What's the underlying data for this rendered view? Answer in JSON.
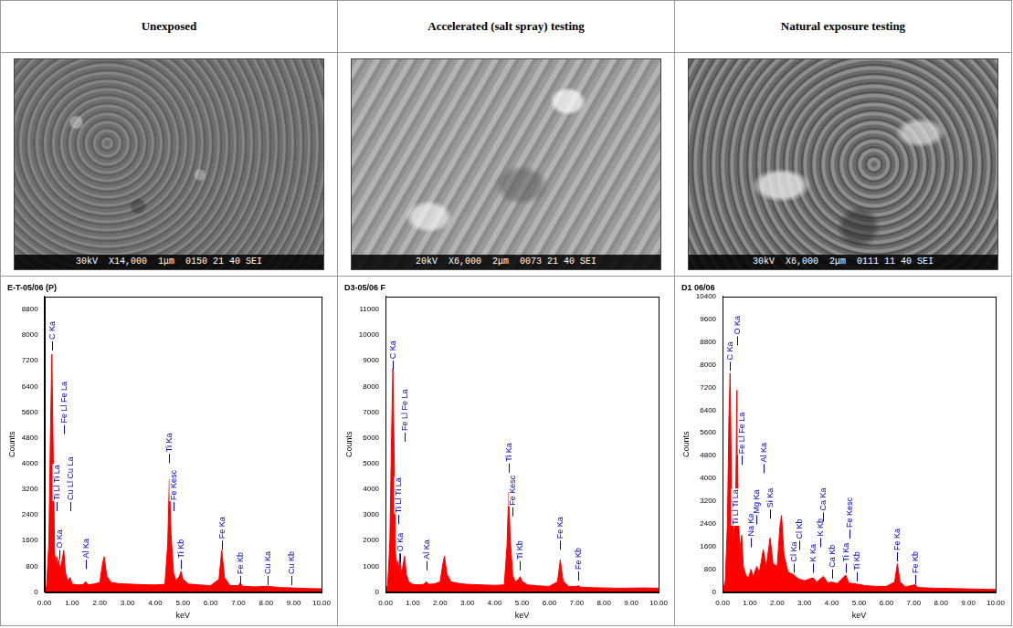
{
  "headers": [
    "Unexposed",
    "Accelerated (salt spray) testing",
    "Natural exposure testing"
  ],
  "sem_images": [
    {
      "caption": "30kV  X14,000  1μm  0150 21 40 SEI"
    },
    {
      "caption": "20kV  X6,000  2μm  0073 21 40 SEI"
    },
    {
      "caption": "30kV  X6,000  2μm  0111 11 40 SEI"
    }
  ],
  "chart_data": [
    {
      "type": "line",
      "title": "E-T-05/06 (P)",
      "x_label": "keV",
      "y_label": "Counts",
      "color": "#ff0000",
      "grid": false,
      "x": [
        0.0,
        0.08,
        0.16,
        0.22,
        0.27,
        0.32,
        0.37,
        0.42,
        0.45,
        0.49,
        0.52,
        0.56,
        0.62,
        0.7,
        0.76,
        0.85,
        0.93,
        1.0,
        1.2,
        1.4,
        1.49,
        1.58,
        1.8,
        2.0,
        2.1,
        2.16,
        2.25,
        2.4,
        2.7,
        3.0,
        3.5,
        4.0,
        4.35,
        4.45,
        4.51,
        4.57,
        4.66,
        4.75,
        4.88,
        4.93,
        5.0,
        5.2,
        5.6,
        6.0,
        6.3,
        6.4,
        6.5,
        6.7,
        7.0,
        7.06,
        7.15,
        7.6,
        8.04,
        8.5,
        8.9,
        9.5,
        10.0
      ],
      "values": [
        0,
        200,
        1500,
        5000,
        7400,
        4200,
        1200,
        900,
        1100,
        800,
        1000,
        700,
        900,
        1300,
        600,
        350,
        450,
        250,
        220,
        230,
        320,
        230,
        250,
        300,
        900,
        1100,
        500,
        300,
        260,
        250,
        230,
        220,
        240,
        1500,
        3500,
        1800,
        600,
        350,
        500,
        650,
        400,
        250,
        220,
        200,
        400,
        1300,
        450,
        200,
        200,
        280,
        180,
        160,
        180,
        140,
        130,
        110,
        100
      ],
      "xlim": [
        0,
        10
      ],
      "xticks": [
        {
          "value": 0,
          "label": "0.00"
        },
        {
          "value": 1,
          "label": "1.00"
        },
        {
          "value": 2,
          "label": "2.00"
        },
        {
          "value": 3,
          "label": "3.00"
        },
        {
          "value": 4,
          "label": "4.00"
        },
        {
          "value": 5,
          "label": "5.00"
        },
        {
          "value": 6,
          "label": "6.00"
        },
        {
          "value": 7,
          "label": "7.00"
        },
        {
          "value": 8,
          "label": "8.00"
        },
        {
          "value": 9,
          "label": "9.00"
        },
        {
          "value": 10,
          "label": "10.00"
        }
      ],
      "ylim": [
        0,
        9200
      ],
      "yticks": [
        0,
        800,
        1600,
        2400,
        3200,
        4000,
        4800,
        5600,
        6400,
        7200,
        8000,
        8800
      ],
      "annotations": [
        {
          "label": "C Ka",
          "x": 0.277,
          "y": 7800
        },
        {
          "label": "Ti Ll Ti La",
          "x": 0.452,
          "y": 2800
        },
        {
          "label": "O Ka",
          "x": 0.525,
          "y": 1300
        },
        {
          "label": "Fe Ll Fe La",
          "x": 0.705,
          "y": 5200
        },
        {
          "label": "Cu Ll Cu La",
          "x": 0.93,
          "y": 2800
        },
        {
          "label": "Al Ka",
          "x": 1.487,
          "y": 1000
        },
        {
          "label": "Ti Ka",
          "x": 4.51,
          "y": 4300
        },
        {
          "label": "Fe Kesc",
          "x": 4.66,
          "y": 2800
        },
        {
          "label": "Ti Kb",
          "x": 4.93,
          "y": 1000
        },
        {
          "label": "Fe Ka",
          "x": 6.4,
          "y": 1600
        },
        {
          "label": "Fe Kb",
          "x": 7.06,
          "y": 500
        },
        {
          "label": "Cu Ka",
          "x": 8.04,
          "y": 500
        },
        {
          "label": "Cu Kb",
          "x": 8.9,
          "y": 500
        }
      ]
    },
    {
      "type": "line",
      "title": "D3-05/06 F",
      "x_label": "keV",
      "y_label": "Counts",
      "color": "#ff0000",
      "grid": false,
      "x": [
        0.0,
        0.08,
        0.16,
        0.22,
        0.27,
        0.32,
        0.37,
        0.42,
        0.45,
        0.49,
        0.52,
        0.56,
        0.62,
        0.7,
        0.76,
        0.85,
        1.0,
        1.2,
        1.4,
        1.49,
        1.58,
        1.8,
        2.0,
        2.1,
        2.16,
        2.25,
        2.4,
        2.7,
        3.0,
        3.5,
        4.0,
        4.35,
        4.45,
        4.51,
        4.57,
        4.66,
        4.75,
        4.88,
        4.93,
        5.0,
        5.2,
        5.6,
        6.0,
        6.3,
        6.4,
        6.5,
        6.7,
        7.0,
        7.06,
        7.15,
        7.6,
        8.5,
        9.5,
        10.0
      ],
      "values": [
        0,
        300,
        2000,
        6000,
        8700,
        5000,
        1500,
        1000,
        1200,
        900,
        1500,
        800,
        900,
        1400,
        700,
        400,
        300,
        280,
        300,
        400,
        300,
        320,
        400,
        1100,
        1400,
        700,
        400,
        330,
        300,
        280,
        260,
        280,
        1800,
        3900,
        2000,
        650,
        400,
        500,
        600,
        420,
        280,
        240,
        220,
        400,
        1250,
        450,
        220,
        210,
        250,
        190,
        170,
        150,
        160,
        150
      ],
      "xlim": [
        0,
        10
      ],
      "xticks": [
        {
          "value": 0,
          "label": "0.00"
        },
        {
          "value": 1,
          "label": "1.00"
        },
        {
          "value": 2,
          "label": "2.00"
        },
        {
          "value": 3,
          "label": "3.00"
        },
        {
          "value": 4,
          "label": "4.00"
        },
        {
          "value": 5,
          "label": "5.00"
        },
        {
          "value": 6,
          "label": "6.00"
        },
        {
          "value": 7,
          "label": "7.00"
        },
        {
          "value": 8,
          "label": "8.00"
        },
        {
          "value": 9,
          "label": "9.00"
        },
        {
          "value": 10,
          "label": "10.00"
        }
      ],
      "ylim": [
        0,
        11500
      ],
      "yticks": [
        0,
        1000,
        2000,
        3000,
        4000,
        5000,
        6000,
        7000,
        8000,
        9000,
        10000,
        11000
      ],
      "annotations": [
        {
          "label": "C Ka",
          "x": 0.277,
          "y": 9000
        },
        {
          "label": "Ti Ll Ti La",
          "x": 0.452,
          "y": 3000
        },
        {
          "label": "O Ka",
          "x": 0.525,
          "y": 1500
        },
        {
          "label": "Fe Ll Fe La",
          "x": 0.705,
          "y": 6200
        },
        {
          "label": "Al Ka",
          "x": 1.487,
          "y": 1200
        },
        {
          "label": "Ti Ka",
          "x": 4.51,
          "y": 5000
        },
        {
          "label": "Fe Kesc",
          "x": 4.66,
          "y": 3300
        },
        {
          "label": "Ti Kb",
          "x": 4.93,
          "y": 1200
        },
        {
          "label": "Fe Ka",
          "x": 6.4,
          "y": 2000
        },
        {
          "label": "Fe Kb",
          "x": 7.06,
          "y": 800
        }
      ]
    },
    {
      "type": "line",
      "title": "D1 06/06",
      "x_label": "keV",
      "y_label": "Counts",
      "color": "#ff0000",
      "grid": false,
      "x": [
        0.0,
        0.1,
        0.18,
        0.23,
        0.277,
        0.33,
        0.4,
        0.45,
        0.49,
        0.525,
        0.57,
        0.63,
        0.7,
        0.76,
        0.85,
        0.95,
        1.04,
        1.12,
        1.25,
        1.35,
        1.49,
        1.6,
        1.74,
        1.85,
        2.0,
        2.1,
        2.16,
        2.25,
        2.4,
        2.62,
        2.72,
        2.82,
        3.0,
        3.31,
        3.45,
        3.69,
        3.85,
        4.01,
        4.2,
        4.51,
        4.62,
        4.93,
        5.2,
        5.6,
        6.0,
        6.3,
        6.4,
        6.5,
        6.7,
        7.06,
        7.15,
        7.6,
        8.5,
        9.5,
        10.0
      ],
      "values": [
        0,
        400,
        2500,
        6000,
        7700,
        3500,
        2000,
        2400,
        4000,
        7100,
        3000,
        1500,
        2000,
        900,
        600,
        500,
        800,
        550,
        900,
        700,
        1500,
        900,
        1900,
        1000,
        900,
        2300,
        2700,
        1300,
        700,
        600,
        500,
        450,
        400,
        500,
        350,
        550,
        330,
        350,
        300,
        600,
        320,
        280,
        230,
        200,
        200,
        350,
        1000,
        350,
        180,
        260,
        160,
        140,
        120,
        100,
        90
      ],
      "xlim": [
        0,
        10
      ],
      "xticks": [
        {
          "value": 0,
          "label": "0.00"
        },
        {
          "value": 1,
          "label": "1.00"
        },
        {
          "value": 2,
          "label": "2.00"
        },
        {
          "value": 3,
          "label": "3.00"
        },
        {
          "value": 4,
          "label": "4.00"
        },
        {
          "value": 5,
          "label": "5.00"
        },
        {
          "value": 6,
          "label": "6.00"
        },
        {
          "value": 7,
          "label": "7.00"
        },
        {
          "value": 8,
          "label": "8.00"
        },
        {
          "value": 9,
          "label": "9.00"
        },
        {
          "value": 10,
          "label": "10.00"
        }
      ],
      "ylim": [
        0,
        10400
      ],
      "yticks": [
        0,
        800,
        1600,
        2400,
        3200,
        4000,
        4800,
        5600,
        6400,
        7200,
        8000,
        8800,
        9600,
        10400
      ],
      "annotations": [
        {
          "label": "C Ka",
          "x": 0.277,
          "y": 8100
        },
        {
          "label": "O Ka",
          "x": 0.525,
          "y": 9000
        },
        {
          "label": "Ti Ll Ti La",
          "x": 0.452,
          "y": 2300
        },
        {
          "label": "Fe Ll Fe La",
          "x": 0.705,
          "y": 4800
        },
        {
          "label": "Na Ka",
          "x": 1.04,
          "y": 1900
        },
        {
          "label": "Mg Ka",
          "x": 1.25,
          "y": 2700
        },
        {
          "label": "Al Ka",
          "x": 1.49,
          "y": 4500
        },
        {
          "label": "Si Ka",
          "x": 1.74,
          "y": 2900
        },
        {
          "label": "Cl Ka",
          "x": 2.62,
          "y": 1000
        },
        {
          "label": "Cl Kb",
          "x": 2.82,
          "y": 1800
        },
        {
          "label": "K Ka",
          "x": 3.31,
          "y": 1000
        },
        {
          "label": "K Kb",
          "x": 3.59,
          "y": 1900
        },
        {
          "label": "Ca Ka",
          "x": 3.69,
          "y": 2800
        },
        {
          "label": "Ca Kb",
          "x": 4.01,
          "y": 800
        },
        {
          "label": "Ti Ka",
          "x": 4.51,
          "y": 1000
        },
        {
          "label": "Fe Kesc",
          "x": 4.66,
          "y": 2200
        },
        {
          "label": "Ti Kb",
          "x": 4.93,
          "y": 700
        },
        {
          "label": "Fe Ka",
          "x": 6.4,
          "y": 1400
        },
        {
          "label": "Fe Kb",
          "x": 7.06,
          "y": 600
        }
      ]
    }
  ]
}
